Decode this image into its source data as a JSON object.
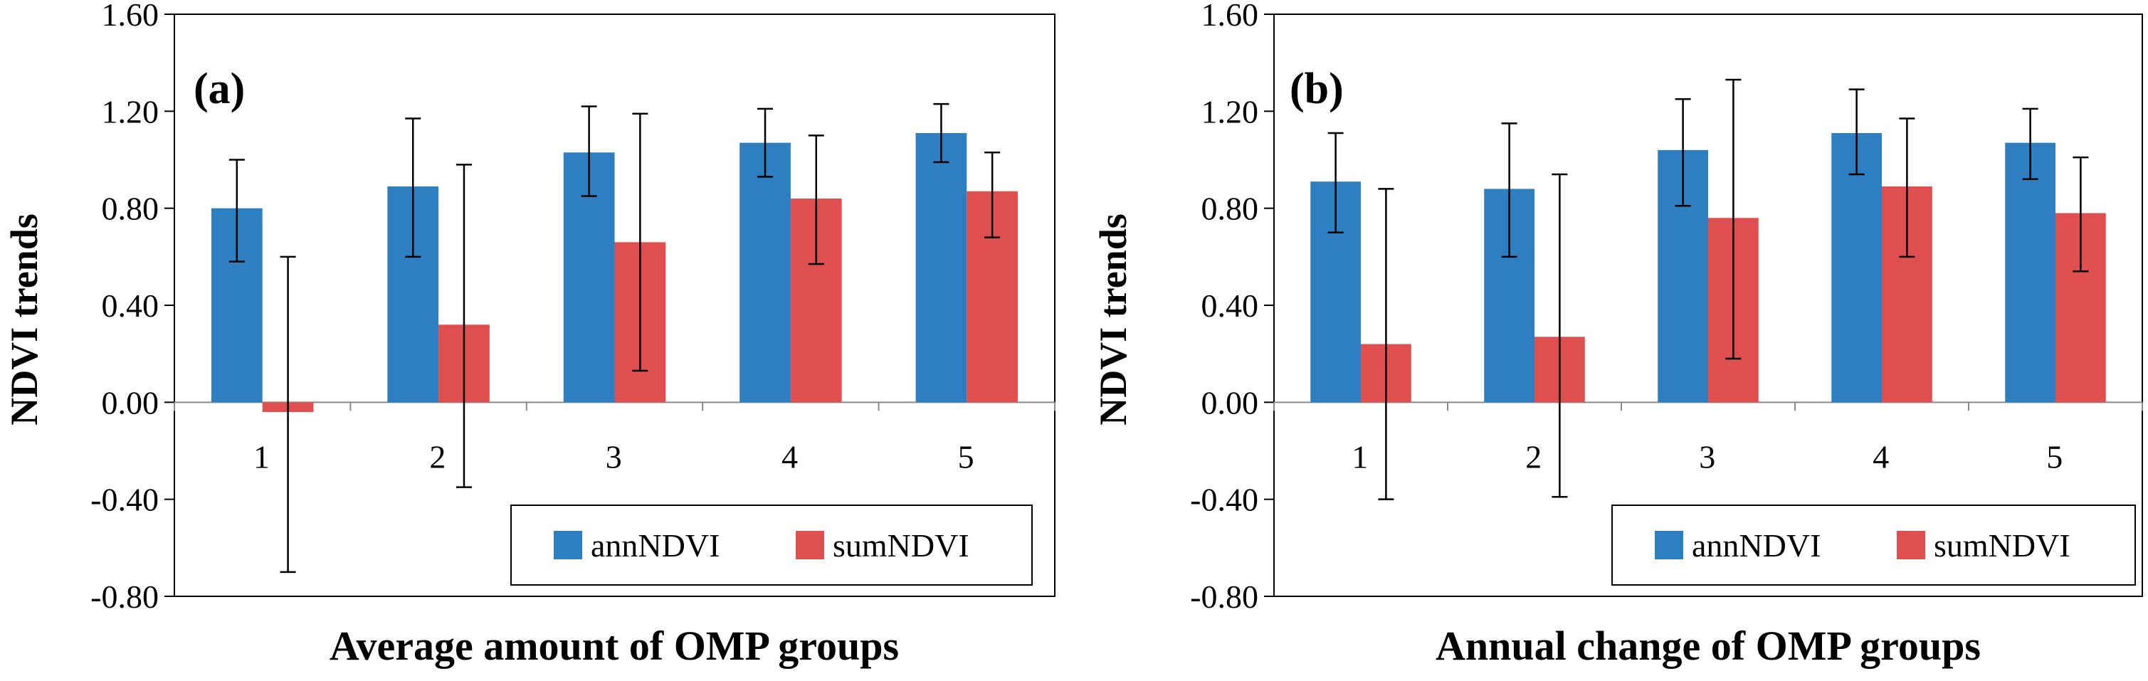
{
  "chart_data": [
    {
      "type": "bar",
      "panel_label": "(a)",
      "title": "",
      "xlabel": "Average amount of OMP groups",
      "ylabel": "NDVI trends",
      "ylim": [
        -0.8,
        1.6
      ],
      "yticks": [
        "1.60",
        "1.20",
        "0.80",
        "0.40",
        "0.00",
        "-0.40",
        "-0.80"
      ],
      "categories": [
        "1",
        "2",
        "3",
        "4",
        "5"
      ],
      "legend_position": "bottom-right",
      "series": [
        {
          "name": "annNDVI",
          "color": "#2E7FC2",
          "values": [
            0.8,
            0.89,
            1.03,
            1.07,
            1.11
          ],
          "err_low": [
            0.58,
            0.6,
            0.85,
            0.93,
            0.99
          ],
          "err_high": [
            1.0,
            1.17,
            1.22,
            1.21,
            1.23
          ]
        },
        {
          "name": "sumNDVI",
          "color": "#E04F4F",
          "values": [
            -0.04,
            0.32,
            0.66,
            0.84,
            0.87
          ],
          "err_low": [
            -0.7,
            -0.35,
            0.13,
            0.57,
            0.68
          ],
          "err_high": [
            0.6,
            0.98,
            1.19,
            1.1,
            1.03
          ]
        }
      ]
    },
    {
      "type": "bar",
      "panel_label": "(b)",
      "title": "",
      "xlabel": "Annual change of OMP groups",
      "ylabel": "NDVI trends",
      "ylim": [
        -0.8,
        1.6
      ],
      "yticks": [
        "1.60",
        "1.20",
        "0.80",
        "0.40",
        "0.00",
        "-0.40",
        "-0.80"
      ],
      "categories": [
        "1",
        "2",
        "3",
        "4",
        "5"
      ],
      "legend_position": "bottom-right",
      "series": [
        {
          "name": "annNDVI",
          "color": "#2E7FC2",
          "values": [
            0.91,
            0.88,
            1.04,
            1.11,
            1.07
          ],
          "err_low": [
            0.7,
            0.6,
            0.81,
            0.94,
            0.92
          ],
          "err_high": [
            1.11,
            1.15,
            1.25,
            1.29,
            1.21
          ]
        },
        {
          "name": "sumNDVI",
          "color": "#E04F4F",
          "values": [
            0.24,
            0.27,
            0.76,
            0.89,
            0.78
          ],
          "err_low": [
            -0.4,
            -0.39,
            0.18,
            0.6,
            0.54
          ],
          "err_high": [
            0.88,
            0.94,
            1.33,
            1.17,
            1.01
          ]
        }
      ]
    }
  ]
}
